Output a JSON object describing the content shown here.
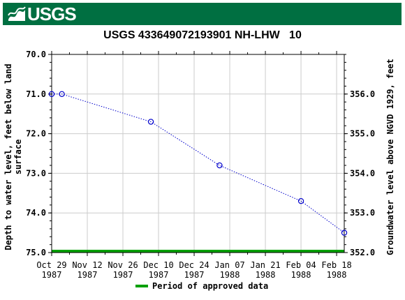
{
  "header": {
    "agency_logo_text": "USGS",
    "brand_color": "#006f41"
  },
  "chart_data": {
    "type": "scatter",
    "title": "USGS 433649072193901 NH-LHW   10",
    "ylabel_left": "Depth to water level, feet below land surface",
    "ylabel_left_lines": [
      "Depth to water level, feet below land",
      "surface"
    ],
    "ylabel_right": "Groundwater level above NGVD 1929, feet",
    "x_ticks": [
      {
        "date": "1987-10-29",
        "line1": "Oct 29",
        "line2": "1987"
      },
      {
        "date": "1987-11-12",
        "line1": "Nov 12",
        "line2": "1987"
      },
      {
        "date": "1987-11-26",
        "line1": "Nov 26",
        "line2": "1987"
      },
      {
        "date": "1987-12-10",
        "line1": "Dec 10",
        "line2": "1987"
      },
      {
        "date": "1987-12-24",
        "line1": "Dec 24",
        "line2": "1987"
      },
      {
        "date": "1988-01-07",
        "line1": "Jan 07",
        "line2": "1988"
      },
      {
        "date": "1988-01-21",
        "line1": "Jan 21",
        "line2": "1988"
      },
      {
        "date": "1988-02-04",
        "line1": "Feb 04",
        "line2": "1988"
      },
      {
        "date": "1988-02-18",
        "line1": "Feb 18",
        "line2": "1988"
      }
    ],
    "xlim": [
      "1987-10-29",
      "1988-02-21"
    ],
    "y_left_ticks": [
      "70.0",
      "71.0",
      "72.0",
      "73.0",
      "74.0",
      "75.0"
    ],
    "y_left_range": [
      70.0,
      75.0
    ],
    "y_left_inverted": true,
    "y_right_ticks": [
      "356.0",
      "355.0",
      "354.0",
      "353.0",
      "352.0"
    ],
    "y_right_values": [
      356.0,
      355.0,
      354.0,
      353.0,
      352.0
    ],
    "right_axis_offset": 427.0,
    "series": [
      {
        "points": [
          {
            "x": "1987-10-29",
            "y": 71.0
          },
          {
            "x": "1987-11-02",
            "y": 71.0
          },
          {
            "x": "1987-12-07",
            "y": 71.7
          },
          {
            "x": "1988-01-03",
            "y": 72.8
          },
          {
            "x": "1988-02-04",
            "y": 73.7
          },
          {
            "x": "1988-02-21",
            "y": 74.5
          }
        ],
        "color": "#0000cc",
        "marker": "open-circle",
        "line": "dotted"
      }
    ],
    "approved_period": {
      "start": "1987-10-29",
      "end": "1988-02-21",
      "color": "#00a000"
    },
    "legend": {
      "label": "Period of approved data",
      "color": "#00a000",
      "placement": "bottom-center"
    },
    "grid": true
  }
}
